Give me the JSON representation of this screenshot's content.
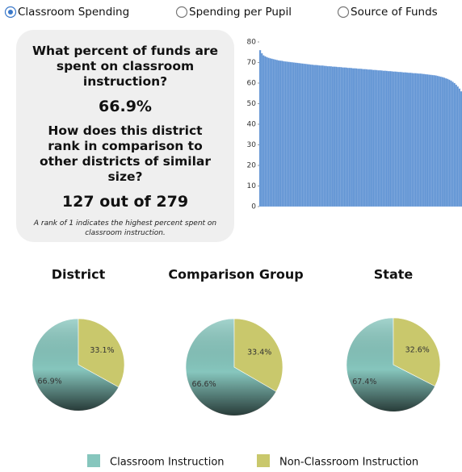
{
  "tabs": [
    {
      "label": "Classroom Spending",
      "selected": true
    },
    {
      "label": "Spending per Pupil",
      "selected": false
    },
    {
      "label": "Source of Funds",
      "selected": false
    }
  ],
  "summary": {
    "question1": "What percent of funds are spent on classroom instruction?",
    "answer1": "66.9%",
    "question2": "How does this district rank in comparison to other districts of similar size?",
    "answer2": "127 out of 279",
    "note": "A rank of 1 indicates the highest percent spent on classroom instruction."
  },
  "chart_data": [
    {
      "type": "bar",
      "color": "#5f93d3",
      "ylim": [
        0,
        80
      ],
      "yticks": [
        0,
        10,
        20,
        30,
        40,
        50,
        60,
        70,
        80
      ],
      "values": [
        76,
        74.5,
        73.5,
        73,
        72.6,
        72.3,
        72,
        71.8,
        71.6,
        71.4,
        71.2,
        71,
        70.9,
        70.8,
        70.6,
        70.5,
        70.4,
        70.3,
        70.2,
        70.1,
        70,
        69.9,
        69.8,
        69.7,
        69.6,
        69.5,
        69.4,
        69.3,
        69.2,
        69.1,
        69,
        68.9,
        68.8,
        68.8,
        68.7,
        68.6,
        68.5,
        68.5,
        68.4,
        68.3,
        68.2,
        68.2,
        68.1,
        68,
        68,
        67.9,
        67.8,
        67.8,
        67.7,
        67.6,
        67.6,
        67.5,
        67.4,
        67.4,
        67.3,
        67.2,
        67.2,
        67.1,
        67,
        67,
        66.9,
        66.8,
        66.8,
        66.7,
        66.6,
        66.6,
        66.5,
        66.4,
        66.4,
        66.3,
        66.2,
        66.2,
        66.1,
        66,
        66,
        65.9,
        65.8,
        65.8,
        65.7,
        65.6,
        65.6,
        65.5,
        65.4,
        65.4,
        65.3,
        65.2,
        65.2,
        65.1,
        65,
        65,
        64.9,
        64.8,
        64.8,
        64.7,
        64.6,
        64.6,
        64.5,
        64.4,
        64.3,
        64.2,
        64.1,
        64,
        63.9,
        63.8,
        63.7,
        63.5,
        63.3,
        63.1,
        62.9,
        62.6,
        62.3,
        62,
        61.6,
        61.2,
        60.6,
        60,
        59.2,
        58.3,
        57.3,
        56
      ]
    },
    {
      "type": "pie",
      "title": "District",
      "categories": [
        "Classroom Instruction",
        "Non-Classroom Instruction"
      ],
      "colors": [
        "#86c6bd",
        "#c9c86c"
      ],
      "values": [
        66.9,
        33.1
      ],
      "value_labels": [
        "66.9%",
        "33.1%"
      ]
    },
    {
      "type": "pie",
      "title": "Comparison Group",
      "categories": [
        "Classroom Instruction",
        "Non-Classroom Instruction"
      ],
      "colors": [
        "#86c6bd",
        "#c9c86c"
      ],
      "values": [
        66.6,
        33.4
      ],
      "value_labels": [
        "66.6%",
        "33.4%"
      ]
    },
    {
      "type": "pie",
      "title": "State",
      "categories": [
        "Classroom Instruction",
        "Non-Classroom Instruction"
      ],
      "colors": [
        "#86c6bd",
        "#c9c86c"
      ],
      "values": [
        67.4,
        32.6
      ],
      "value_labels": [
        "67.4%",
        "32.6%"
      ]
    }
  ]
}
